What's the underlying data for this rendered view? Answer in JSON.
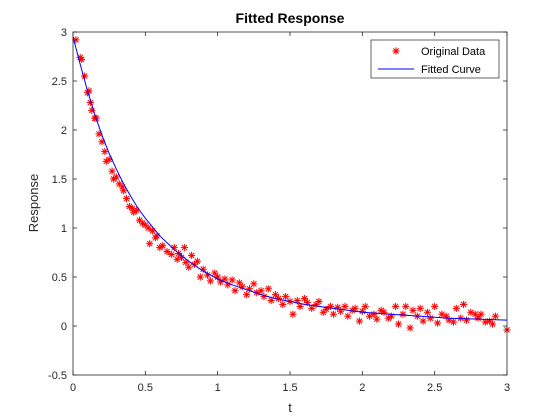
{
  "chart_data": {
    "type": "scatter",
    "title": "Fitted Response",
    "xlabel": "t",
    "ylabel": "Response",
    "xlim": [
      0,
      3
    ],
    "ylim": [
      -0.5,
      3
    ],
    "xticks": [
      "0",
      "0.5",
      "1",
      "1.5",
      "2",
      "2.5",
      "3"
    ],
    "yticks": [
      "-0.5",
      "0",
      "0.5",
      "1",
      "1.5",
      "2",
      "2.5",
      "3"
    ],
    "legend_position": "top-right",
    "grid": false,
    "series": [
      {
        "name": "Original Data",
        "kind": "marker",
        "marker": "asterisk",
        "color": "#ff0000",
        "x": [
          0.02,
          0.05,
          0.06,
          0.08,
          0.1,
          0.11,
          0.12,
          0.13,
          0.15,
          0.16,
          0.18,
          0.2,
          0.22,
          0.23,
          0.25,
          0.27,
          0.28,
          0.3,
          0.32,
          0.34,
          0.35,
          0.37,
          0.39,
          0.41,
          0.42,
          0.44,
          0.46,
          0.48,
          0.5,
          0.52,
          0.53,
          0.55,
          0.57,
          0.58,
          0.6,
          0.62,
          0.65,
          0.68,
          0.7,
          0.72,
          0.73,
          0.75,
          0.77,
          0.78,
          0.8,
          0.82,
          0.84,
          0.86,
          0.88,
          0.9,
          0.93,
          0.95,
          0.98,
          1.0,
          1.02,
          1.05,
          1.07,
          1.1,
          1.12,
          1.15,
          1.17,
          1.2,
          1.22,
          1.25,
          1.27,
          1.3,
          1.32,
          1.35,
          1.37,
          1.4,
          1.42,
          1.45,
          1.47,
          1.5,
          1.52,
          1.55,
          1.57,
          1.6,
          1.62,
          1.65,
          1.68,
          1.7,
          1.73,
          1.75,
          1.78,
          1.8,
          1.83,
          1.85,
          1.88,
          1.9,
          1.93,
          1.95,
          1.98,
          2.0,
          2.02,
          2.05,
          2.08,
          2.1,
          2.13,
          2.15,
          2.18,
          2.2,
          2.23,
          2.25,
          2.28,
          2.3,
          2.33,
          2.35,
          2.38,
          2.4,
          2.42,
          2.45,
          2.47,
          2.5,
          2.52,
          2.55,
          2.58,
          2.6,
          2.63,
          2.65,
          2.68,
          2.7,
          2.72,
          2.75,
          2.78,
          2.8,
          2.82,
          2.85,
          2.88,
          2.9,
          2.92,
          3.0
        ],
        "y": [
          2.92,
          2.74,
          2.72,
          2.55,
          2.38,
          2.4,
          2.28,
          2.2,
          2.12,
          2.12,
          1.96,
          1.88,
          1.78,
          1.68,
          1.7,
          1.58,
          1.5,
          1.52,
          1.45,
          1.42,
          1.38,
          1.3,
          1.22,
          1.2,
          1.16,
          1.18,
          1.08,
          1.05,
          1.03,
          1.0,
          0.84,
          0.97,
          0.9,
          0.92,
          0.8,
          0.82,
          0.76,
          0.73,
          0.8,
          0.68,
          0.74,
          0.7,
          0.8,
          0.65,
          0.6,
          0.72,
          0.63,
          0.66,
          0.5,
          0.58,
          0.52,
          0.46,
          0.54,
          0.5,
          0.45,
          0.48,
          0.42,
          0.47,
          0.36,
          0.44,
          0.4,
          0.32,
          0.38,
          0.43,
          0.34,
          0.36,
          0.3,
          0.38,
          0.26,
          0.32,
          0.28,
          0.22,
          0.3,
          0.25,
          0.12,
          0.26,
          0.2,
          0.28,
          0.24,
          0.18,
          0.22,
          0.25,
          0.14,
          0.17,
          0.2,
          0.12,
          0.19,
          0.15,
          0.2,
          0.1,
          0.16,
          0.18,
          0.05,
          0.15,
          0.2,
          0.1,
          0.12,
          0.07,
          0.16,
          0.14,
          0.08,
          0.1,
          0.2,
          0.02,
          0.12,
          0.2,
          -0.02,
          0.16,
          0.1,
          0.18,
          0.05,
          0.14,
          0.08,
          0.2,
          0.03,
          0.12,
          0.1,
          0.06,
          0.04,
          0.18,
          0.08,
          0.22,
          0.06,
          0.14,
          0.12,
          0.08,
          0.12,
          0.04,
          0.05,
          0.02,
          0.1,
          -0.04
        ]
      },
      {
        "name": "Fitted Curve",
        "kind": "line",
        "color": "#0000ff",
        "x": [
          0,
          0.05,
          0.1,
          0.15,
          0.2,
          0.25,
          0.3,
          0.35,
          0.4,
          0.45,
          0.5,
          0.6,
          0.7,
          0.8,
          0.9,
          1.0,
          1.1,
          1.2,
          1.3,
          1.4,
          1.5,
          1.6,
          1.7,
          1.8,
          1.9,
          2.0,
          2.2,
          2.4,
          2.6,
          2.8,
          3.0
        ],
        "y": [
          2.95,
          2.67,
          2.4,
          2.16,
          1.95,
          1.76,
          1.6,
          1.45,
          1.32,
          1.2,
          1.1,
          0.92,
          0.78,
          0.66,
          0.56,
          0.48,
          0.42,
          0.37,
          0.32,
          0.28,
          0.25,
          0.22,
          0.2,
          0.18,
          0.16,
          0.14,
          0.12,
          0.1,
          0.08,
          0.07,
          0.06
        ]
      }
    ]
  }
}
